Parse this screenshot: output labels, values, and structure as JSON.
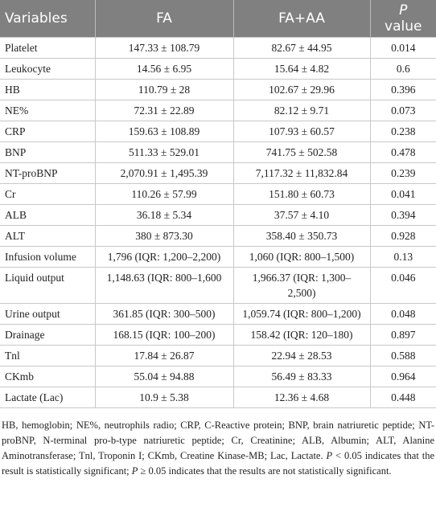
{
  "table": {
    "header": [
      "Variables",
      "FA",
      "FA+AA"
    ],
    "p_header": {
      "italic": "P",
      "rest": "value"
    },
    "rows": [
      [
        "Platelet",
        "147.33 ± 108.79",
        "82.67 ± 44.95",
        "0.014"
      ],
      [
        "Leukocyte",
        "14.56 ± 6.95",
        "15.64 ± 4.82",
        "0.6"
      ],
      [
        "HB",
        "110.79 ± 28",
        "102.67 ± 29.96",
        "0.396"
      ],
      [
        "NE%",
        "72.31 ± 22.89",
        "82.12 ± 9.71",
        "0.073"
      ],
      [
        "CRP",
        "159.63 ± 108.89",
        "107.93 ± 60.57",
        "0.238"
      ],
      [
        "BNP",
        "511.33 ± 529.01",
        "741.75 ± 502.58",
        "0.478"
      ],
      [
        "NT-proBNP",
        "2,070.91 ± 1,495.39",
        "7,117.32 ± 11,832.84",
        "0.239"
      ],
      [
        "Cr",
        "110.26 ± 57.99",
        "151.80 ± 60.73",
        "0.041"
      ],
      [
        "ALB",
        "36.18 ± 5.34",
        "37.57 ± 4.10",
        "0.394"
      ],
      [
        "ALT",
        "380 ± 873.30",
        "358.40 ± 350.73",
        "0.928"
      ],
      [
        "Infusion volume",
        "1,796 (IQR: 1,200–2,200)",
        "1,060 (IQR: 800–1,500)",
        "0.13"
      ],
      [
        "Liquid output",
        "1,148.63 (IQR: 800–1,600",
        "1,966.37 (IQR: 1,300–2,500)",
        "0.046"
      ],
      [
        "Urine output",
        "361.85 (IQR: 300–500)",
        "1,059.74 (IQR: 800–1,200)",
        "0.048"
      ],
      [
        "Drainage",
        "168.15 (IQR: 100–200)",
        "158.42 (IQR: 120–180)",
        "0.897"
      ],
      [
        "Tnl",
        "17.84 ± 26.87",
        "22.94 ± 28.53",
        "0.588"
      ],
      [
        "CKmb",
        "55.04 ± 94.88",
        "56.49 ± 83.33",
        "0.964"
      ],
      [
        "Lactate (Lac)",
        "10.9 ± 5.38",
        "12.36 ± 4.68",
        "0.448"
      ]
    ]
  },
  "footnote": [
    "HB, hemoglobin; NE%, neutrophils radio; CRP, C-Reactive protein; BNP, brain natriuretic peptide; NT-proBNP, N-terminal pro-b-type natriuretic peptide; Cr, Creatinine; ALB, Albumin; ALT, Alanine Aminotransferase; Tnl, Troponin I; CKmb, Creatine Kinase-MB; Lac, Lactate. ",
    "P",
    " < 0.05 indicates that the result is statistically significant; ",
    "P",
    " ≥ 0.05 indicates that the results are not statistically significant."
  ]
}
